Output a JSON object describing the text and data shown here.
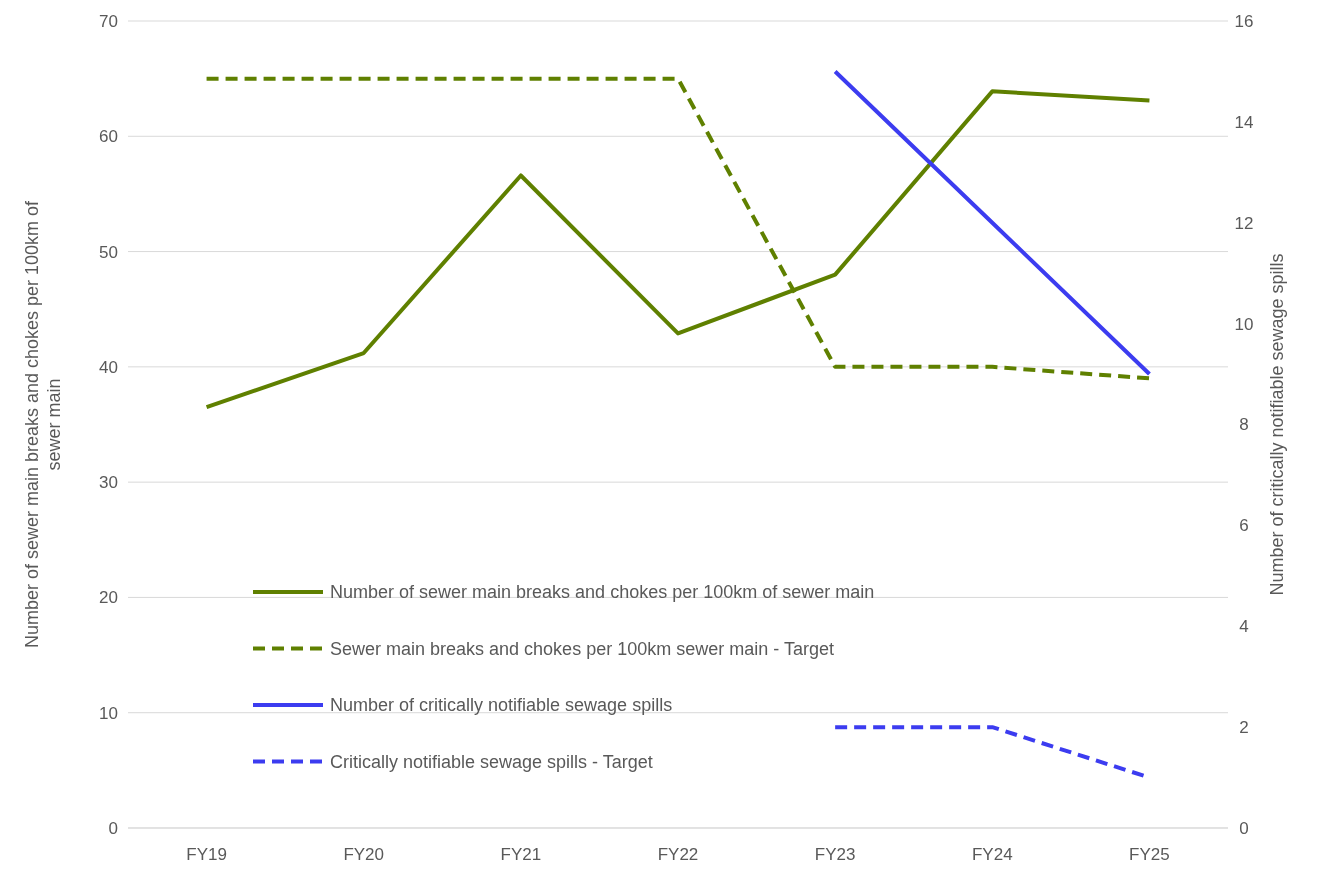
{
  "chart_data": {
    "type": "line",
    "categories": [
      "FY19",
      "FY20",
      "FY21",
      "FY22",
      "FY23",
      "FY24",
      "FY25"
    ],
    "ylabel": "Number of sewer main breaks and chokes per 100km of sewer main",
    "y2label": "Number of critically notifiable sewage spills",
    "ylim": [
      0,
      70
    ],
    "yticks": [
      0,
      10,
      20,
      30,
      40,
      50,
      60,
      70
    ],
    "y2lim": [
      0,
      16
    ],
    "y2ticks": [
      0,
      2,
      4,
      6,
      8,
      10,
      12,
      14,
      16
    ],
    "grid": "y",
    "legend": "bottom left",
    "marker": "none",
    "series": [
      {
        "name": "Number of sewer main breaks and chokes per 100km of sewer main",
        "color": "#5f8000",
        "line_style": "solid",
        "values": [
          36.5,
          41.2,
          56.6,
          42.9,
          48.0,
          63.9,
          63.1
        ]
      },
      {
        "name": "Sewer main breaks and chokes per 100km sewer main - Target",
        "color": "#5f8000",
        "line_style": "dashed",
        "values": [
          65,
          65,
          65,
          65,
          40,
          40,
          39
        ]
      },
      {
        "name": "Number of critically notifiable sewage spills",
        "color": "#3c3cf0",
        "line_style": "solid",
        "axis": "y2",
        "values": [
          null,
          null,
          null,
          null,
          15,
          12,
          9
        ]
      },
      {
        "name": "Critically notifiable sewage spills - Target",
        "color": "#3c3cf0",
        "line_style": "dashed",
        "axis": "y2",
        "values": [
          null,
          null,
          null,
          null,
          2,
          2,
          1
        ]
      }
    ]
  }
}
